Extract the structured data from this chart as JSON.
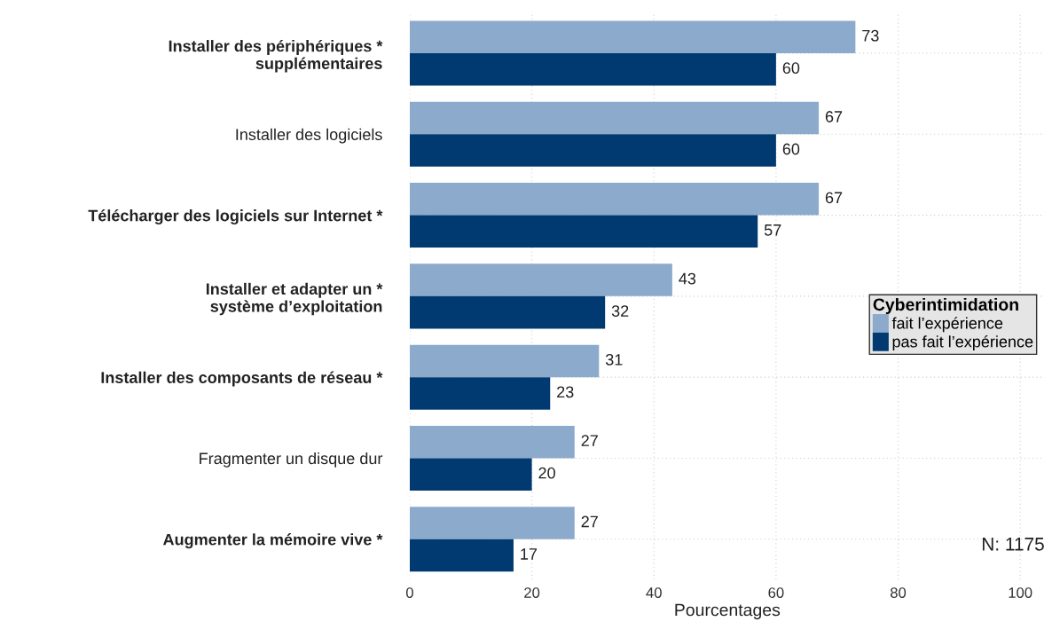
{
  "chart_data": {
    "type": "bar",
    "orientation": "horizontal",
    "xlabel": "Pourcentages",
    "legend_title": "Cyberintimidation",
    "legend": "right",
    "categories": [
      "Installer des périphériques *\nsupplémentaires",
      "Installer des logiciels",
      "Télécharger des logiciels sur Internet *",
      "Installer et adapter un *\nsystème d’exploitation",
      "Installer des composants de réseau *",
      "Fragmenter un disque dur",
      "Augmenter la mémoire vive *"
    ],
    "series": [
      {
        "name": "fait l’expérience",
        "color": "#8caacb",
        "values": [
          73,
          67,
          67,
          43,
          31,
          27,
          27
        ]
      },
      {
        "name": "pas fait l’expérience",
        "color": "#003a70",
        "values": [
          60,
          60,
          57,
          32,
          23,
          20,
          17
        ]
      }
    ],
    "data_labels": true,
    "xlim": [
      0,
      104
    ],
    "xticks": [
      0,
      20,
      40,
      60,
      80,
      100
    ],
    "grid": true,
    "annotations": [
      "N: 1175"
    ]
  }
}
